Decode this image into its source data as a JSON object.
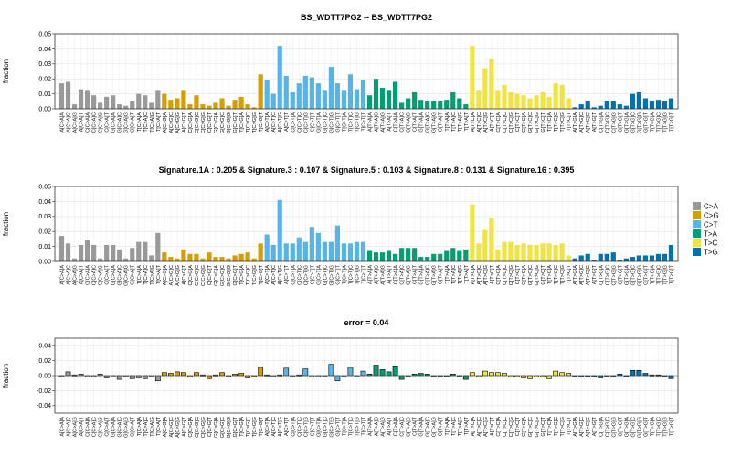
{
  "chart_data": [
    {
      "type": "bar",
      "title": "BS_WDTT7PG2 -- BS_WDTT7PG2",
      "ylabel": "fraction",
      "ylim": [
        0,
        0.05
      ],
      "yticks": [
        0.0,
        0.01,
        0.02,
        0.03,
        0.04,
        0.05
      ],
      "values": [
        0.017,
        0.018,
        0.003,
        0.013,
        0.012,
        0.009,
        0.004,
        0.008,
        0.009,
        0.003,
        0.002,
        0.005,
        0.01,
        0.009,
        0.004,
        0.012,
        0.01,
        0.006,
        0.007,
        0.012,
        0.003,
        0.009,
        0.003,
        0.002,
        0.004,
        0.007,
        0.002,
        0.006,
        0.008,
        0.003,
        0.001,
        0.023,
        0.019,
        0.01,
        0.042,
        0.022,
        0.011,
        0.017,
        0.022,
        0.021,
        0.017,
        0.012,
        0.028,
        0.017,
        0.012,
        0.023,
        0.013,
        0.019,
        0.009,
        0.02,
        0.014,
        0.012,
        0.018,
        0.004,
        0.007,
        0.011,
        0.006,
        0.005,
        0.005,
        0.005,
        0.006,
        0.011,
        0.007,
        0.003,
        0.042,
        0.012,
        0.027,
        0.033,
        0.012,
        0.016,
        0.011,
        0.01,
        0.009,
        0.007,
        0.009,
        0.011,
        0.008,
        0.017,
        0.016,
        0.007,
        0.001,
        0.003,
        0.005,
        0.001,
        0.002,
        0.005,
        0.005,
        0.003,
        0.002,
        0.01,
        0.011,
        0.007,
        0.005,
        0.006,
        0.005,
        0.007
      ]
    },
    {
      "type": "bar",
      "title": "Signature.1A : 0.205 & Signature.3 : 0.107 & Signature.5 : 0.103 & Signature.8 : 0.131 & Signature.16 : 0.395",
      "ylabel": "fraction",
      "ylim": [
        0,
        0.05
      ],
      "yticks": [
        0.0,
        0.01,
        0.02,
        0.03,
        0.04,
        0.05
      ],
      "values": [
        0.017,
        0.012,
        0.002,
        0.011,
        0.014,
        0.011,
        0.002,
        0.011,
        0.011,
        0.008,
        0.002,
        0.009,
        0.013,
        0.013,
        0.004,
        0.019,
        0.006,
        0.003,
        0.002,
        0.008,
        0.005,
        0.005,
        0.002,
        0.006,
        0.003,
        0.003,
        0.002,
        0.004,
        0.005,
        0.006,
        0.002,
        0.012,
        0.018,
        0.011,
        0.041,
        0.012,
        0.012,
        0.016,
        0.013,
        0.023,
        0.019,
        0.013,
        0.013,
        0.024,
        0.012,
        0.012,
        0.013,
        0.013,
        0.007,
        0.006,
        0.006,
        0.007,
        0.005,
        0.009,
        0.009,
        0.009,
        0.003,
        0.003,
        0.005,
        0.005,
        0.007,
        0.009,
        0.007,
        0.008,
        0.038,
        0.012,
        0.021,
        0.029,
        0.008,
        0.013,
        0.013,
        0.011,
        0.012,
        0.011,
        0.011,
        0.012,
        0.012,
        0.011,
        0.012,
        0.004,
        0.002,
        0.004,
        0.005,
        0.001,
        0.005,
        0.005,
        0.006,
        0.001,
        0.002,
        0.003,
        0.004,
        0.004,
        0.004,
        0.005,
        0.005,
        0.011
      ]
    },
    {
      "type": "bar",
      "title": "error = 0.04",
      "ylabel": "fraction",
      "ylim": [
        -0.05,
        0.05
      ],
      "yticks": [
        -0.04,
        -0.02,
        0.0,
        0.02,
        0.04
      ],
      "values": [
        0.0,
        0.005,
        0.001,
        0.002,
        -0.002,
        -0.002,
        0.002,
        -0.003,
        -0.002,
        -0.005,
        0.0,
        -0.004,
        -0.003,
        -0.004,
        0.0,
        -0.007,
        0.004,
        0.003,
        0.005,
        0.004,
        -0.002,
        0.004,
        0.001,
        -0.004,
        0.001,
        0.004,
        0.0,
        0.002,
        0.003,
        -0.003,
        -0.001,
        0.011,
        0.001,
        -0.001,
        0.001,
        0.01,
        -0.001,
        0.001,
        0.009,
        -0.002,
        -0.002,
        -0.001,
        0.015,
        -0.007,
        0.0,
        0.011,
        0.0,
        0.006,
        0.002,
        0.014,
        0.008,
        0.005,
        0.013,
        -0.005,
        -0.002,
        0.002,
        0.003,
        0.002,
        0.0,
        0.0,
        -0.001,
        0.002,
        0.0,
        -0.005,
        0.004,
        0.0,
        0.006,
        0.004,
        0.004,
        0.003,
        -0.002,
        -0.001,
        -0.003,
        -0.004,
        -0.002,
        -0.001,
        -0.004,
        0.006,
        0.004,
        0.003,
        -0.001,
        -0.001,
        0.0,
        0.0,
        -0.003,
        0.0,
        -0.001,
        0.002,
        0.0,
        0.007,
        0.007,
        0.003,
        0.001,
        0.001,
        0.0,
        -0.004
      ]
    }
  ],
  "categories": [
    "A[C>A]A",
    "A[C>A]C",
    "A[C>A]G",
    "A[C>A]T",
    "C[C>A]A",
    "C[C>A]C",
    "C[C>A]G",
    "C[C>A]T",
    "G[C>A]A",
    "G[C>A]C",
    "G[C>A]G",
    "G[C>A]T",
    "T[C>A]A",
    "T[C>A]C",
    "T[C>A]G",
    "T[C>A]T",
    "A[C>G]A",
    "A[C>G]C",
    "A[C>G]G",
    "A[C>G]T",
    "C[C>G]A",
    "C[C>G]C",
    "C[C>G]G",
    "C[C>G]T",
    "G[C>G]A",
    "G[C>G]C",
    "G[C>G]G",
    "G[C>G]T",
    "T[C>G]A",
    "T[C>G]C",
    "T[C>G]G",
    "T[C>G]T",
    "A[C>T]A",
    "A[C>T]C",
    "A[C>T]G",
    "A[C>T]T",
    "C[C>T]A",
    "C[C>T]C",
    "C[C>T]G",
    "C[C>T]T",
    "G[C>T]A",
    "G[C>T]C",
    "G[C>T]G",
    "G[C>T]T",
    "T[C>T]A",
    "T[C>T]C",
    "T[C>T]G",
    "T[C>T]T",
    "A[T>A]A",
    "A[T>A]C",
    "A[T>A]G",
    "A[T>A]T",
    "C[T>A]A",
    "C[T>A]C",
    "C[T>A]G",
    "C[T>A]T",
    "G[T>A]A",
    "G[T>A]C",
    "G[T>A]G",
    "G[T>A]T",
    "T[T>A]A",
    "T[T>A]C",
    "T[T>A]G",
    "T[T>A]T",
    "A[T>C]A",
    "A[T>C]C",
    "A[T>C]G",
    "A[T>C]T",
    "C[T>C]A",
    "C[T>C]C",
    "C[T>C]G",
    "C[T>C]T",
    "G[T>C]A",
    "G[T>C]C",
    "G[T>C]G",
    "G[T>C]T",
    "T[T>C]A",
    "T[T>C]C",
    "T[T>C]G",
    "T[T>C]T",
    "A[T>G]A",
    "A[T>G]C",
    "A[T>G]G",
    "A[T>G]T",
    "C[T>G]A",
    "C[T>G]C",
    "C[T>G]G",
    "C[T>G]T",
    "G[T>G]A",
    "G[T>G]C",
    "G[T>G]G",
    "G[T>G]T",
    "T[T>G]A",
    "T[T>G]C",
    "T[T>G]G",
    "T[T>G]T"
  ],
  "legend": {
    "position": "right",
    "entries": [
      {
        "label": "C>A",
        "color": "#999999"
      },
      {
        "label": "C>G",
        "color": "#D69E00"
      },
      {
        "label": "C>T",
        "color": "#56B4E9"
      },
      {
        "label": "T>A",
        "color": "#009E73"
      },
      {
        "label": "T>C",
        "color": "#F0E442"
      },
      {
        "label": "T>G",
        "color": "#0072B2"
      }
    ]
  }
}
